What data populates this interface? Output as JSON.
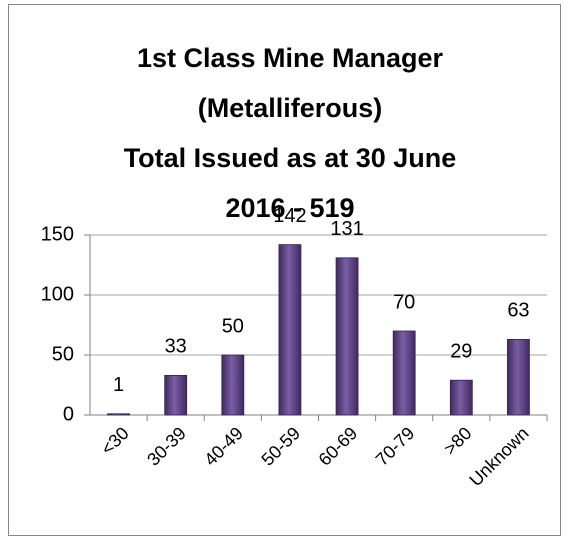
{
  "chart_data": {
    "type": "bar",
    "title": [
      "1st Class Mine Manager",
      "(Metalliferous)",
      "Total Issued as at 30 June",
      "2016 - 519"
    ],
    "categories": [
      "<30",
      "30-39",
      "40-49",
      "50-59",
      "60-69",
      "70-79",
      ">80",
      "Unknown"
    ],
    "values": [
      1,
      33,
      50,
      142,
      131,
      70,
      29,
      63
    ],
    "color": "#5e4585",
    "ylim": [
      0,
      150
    ],
    "yticks": [
      0,
      50,
      100,
      150
    ],
    "grid": true
  }
}
